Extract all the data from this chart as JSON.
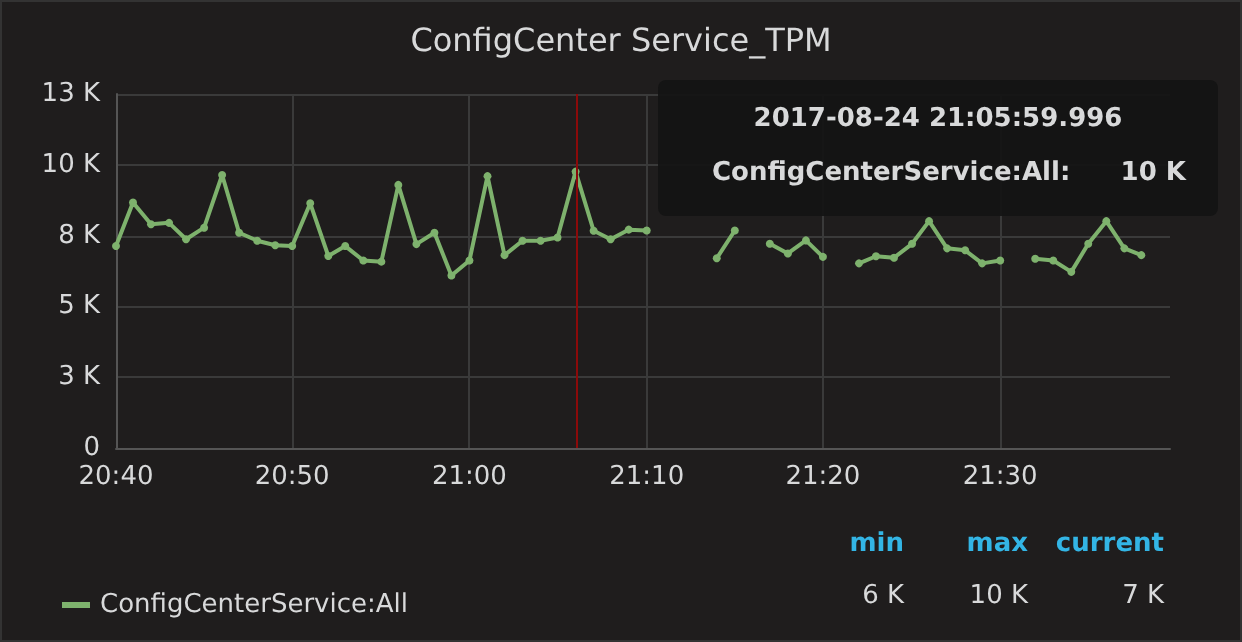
{
  "chart_data": {
    "type": "line",
    "title": "ConfigCenter Service_TPM",
    "x": [
      20.667,
      20.683,
      20.7,
      20.717,
      20.733,
      20.75,
      20.767,
      20.783,
      20.8,
      20.817,
      20.833,
      20.85,
      20.867,
      20.883,
      20.9,
      20.917,
      20.933,
      20.95,
      20.967,
      20.983,
      21.0,
      21.017,
      21.033,
      21.05,
      21.067,
      21.083,
      21.1,
      21.117,
      21.133,
      21.15,
      21.167,
      21.183,
      21.2,
      21.217,
      21.233,
      21.25,
      21.267,
      21.283,
      21.3,
      21.317,
      21.333,
      21.35,
      21.367,
      21.383,
      21.4,
      21.417,
      21.433,
      21.45,
      21.467,
      21.483,
      21.5,
      21.517,
      21.533,
      21.55,
      21.567,
      21.583,
      21.6,
      21.617,
      21.633
    ],
    "series": [
      {
        "name": "ConfigCenterService:All",
        "color": "#7eb26d",
        "values": [
          7130,
          8670,
          7900,
          7950,
          7370,
          7780,
          9640,
          7600,
          7320,
          7160,
          7130,
          8640,
          6780,
          7130,
          6620,
          6580,
          9290,
          7200,
          7600,
          6090,
          6620,
          9600,
          6810,
          7320,
          7320,
          7430,
          9760,
          7670,
          7370,
          7710,
          7680,
          null,
          null,
          null,
          6700,
          7680,
          null,
          7210,
          6870,
          7330,
          6750,
          null,
          6520,
          6770,
          6720,
          7210,
          8010,
          7050,
          6980,
          6520,
          6620,
          null,
          6680,
          6620,
          6220,
          7210,
          8010,
          7050,
          6810
        ]
      }
    ],
    "xlim": [
      20.667,
      21.66
    ],
    "xticks": [
      {
        "value": 20.667,
        "label": "20:40"
      },
      {
        "value": 20.833,
        "label": "20:50"
      },
      {
        "value": 21.0,
        "label": "21:00"
      },
      {
        "value": 21.167,
        "label": "21:10"
      },
      {
        "value": 21.333,
        "label": "21:20"
      },
      {
        "value": 21.5,
        "label": "21:30"
      }
    ],
    "ylim": [
      0,
      12500
    ],
    "yticks": [
      0,
      {
        "value": 2500,
        "label": "3 K"
      },
      {
        "value": 5000,
        "label": "5 K"
      },
      {
        "value": 7500,
        "label": "8 K"
      },
      {
        "value": 10000,
        "label": "10 K"
      },
      {
        "value": 12500,
        "label": "13 K"
      }
    ],
    "grid": true,
    "legend": "bottom left",
    "marker": "circle",
    "line_style": "solid",
    "ref_lines": [
      {
        "axis": "x",
        "value": 21.1,
        "color": "#8b0a0a"
      }
    ],
    "annotations": [
      "2017-08-24 21:05:59.996",
      "ConfigCenterService:All:",
      "10 K",
      "min",
      "max",
      "current",
      "6 K",
      "10 K",
      "7 K"
    ]
  }
}
